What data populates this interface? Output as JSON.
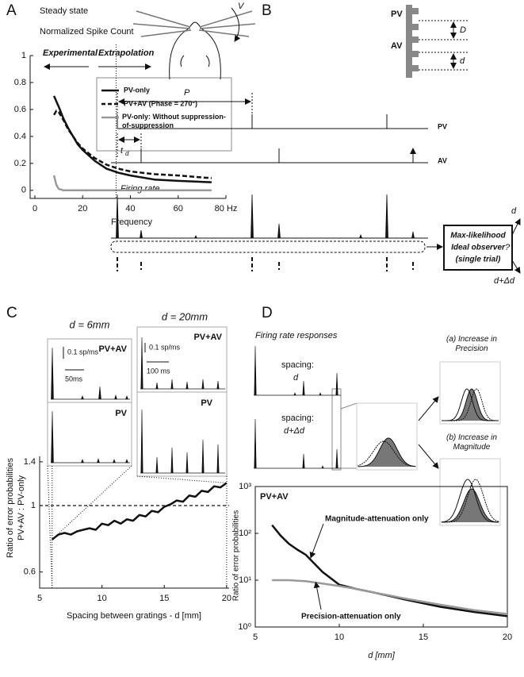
{
  "panels": [
    "A",
    "B",
    "C",
    "D"
  ],
  "chart_data": [
    {
      "type": "line",
      "title": "Steady state",
      "subtitle": "Normalized Spike Count",
      "xlabel": "Frequency",
      "xlim": [
        -2,
        80
      ],
      "xticks": [
        0,
        20,
        40,
        60,
        {
          "value": 80,
          "label": "80 Hz"
        }
      ],
      "ylim": [
        -0.06,
        1
      ],
      "yticks": [
        0,
        0.2,
        0.4,
        0.6,
        0.8,
        1
      ],
      "annotations": [
        "Experimental",
        "Extrapolation"
      ],
      "divider_x": 34,
      "legend": "upper right",
      "series": [
        {
          "name": "PV-only",
          "color": "#111111",
          "dash": "solid",
          "x": [
            8,
            9,
            10,
            12,
            14,
            16,
            18,
            20,
            25,
            30,
            35,
            40,
            50,
            60,
            74
          ],
          "values": [
            0.7,
            0.66,
            0.62,
            0.53,
            0.46,
            0.4,
            0.34,
            0.3,
            0.22,
            0.16,
            0.13,
            0.11,
            0.08,
            0.07,
            0.06
          ]
        },
        {
          "name": "PV+AV (Phase = 270°)",
          "color": "#111111",
          "dash": "dashed",
          "x": [
            8,
            9,
            10,
            11,
            12,
            14,
            16,
            18,
            20,
            25,
            30,
            35,
            40,
            50,
            60,
            74
          ],
          "values": [
            0.56,
            0.59,
            0.58,
            0.55,
            0.52,
            0.45,
            0.4,
            0.35,
            0.31,
            0.24,
            0.19,
            0.16,
            0.14,
            0.12,
            0.11,
            0.09
          ]
        },
        {
          "name": "PV-only: Without suppression-of-suppression",
          "color": "#999999",
          "dash": "solid",
          "x": [
            8,
            9,
            10,
            12,
            20,
            40,
            60,
            74
          ],
          "values": [
            0.11,
            0.04,
            0.01,
            0,
            0,
            0,
            0,
            0
          ]
        }
      ]
    },
    {
      "type": "line",
      "xlabel": "Spacing between gratings - d [mm]",
      "ylabel": [
        "Ratio of error probabilities",
        "PV+AV : PV-only"
      ],
      "xlim": [
        5,
        20.2
      ],
      "xticks": [
        5,
        10,
        15,
        20
      ],
      "ylim": [
        0.53,
        1.46
      ],
      "yscale": "log",
      "yticks": [
        0.6,
        1,
        1.4
      ],
      "reference_y": 1,
      "series": [
        {
          "color": "#111111",
          "dash": "solid",
          "x": [
            6,
            6.5,
            7,
            7.5,
            8,
            8.5,
            9,
            9.5,
            10,
            10.5,
            11,
            11.5,
            12,
            12.5,
            13,
            13.5,
            14,
            14.5,
            15,
            15.5,
            16,
            16.5,
            17,
            17.5,
            18,
            18.5,
            19,
            19.5,
            20
          ],
          "values": [
            0.77,
            0.8,
            0.81,
            0.8,
            0.82,
            0.83,
            0.84,
            0.83,
            0.87,
            0.86,
            0.89,
            0.87,
            0.9,
            0.89,
            0.93,
            0.92,
            0.96,
            0.95,
            0.99,
            1.01,
            1.04,
            1.03,
            1.08,
            1.07,
            1.12,
            1.11,
            1.16,
            1.15,
            1.19
          ]
        }
      ]
    },
    {
      "type": "line",
      "title": "PV+AV",
      "xlabel": "d [mm]",
      "ylabel": "Ratio of error probabilities",
      "xlim": [
        5,
        20
      ],
      "xticks": [
        5,
        10,
        15,
        20
      ],
      "ylim": [
        1,
        1000
      ],
      "yscale": "log",
      "yticks": [
        {
          "value": 1,
          "label": "10⁰"
        },
        {
          "value": 10,
          "label": "10¹"
        },
        {
          "value": 100,
          "label": "10²"
        },
        {
          "value": 1000,
          "label": "10³"
        }
      ],
      "legend": "inline",
      "series": [
        {
          "name": "Magnitude-attenuation only",
          "color": "#111111",
          "dash": "solid",
          "x": [
            6,
            6.5,
            7,
            7.5,
            8,
            9,
            10,
            11,
            12,
            13,
            14,
            16,
            18,
            20
          ],
          "values": [
            150,
            90,
            60,
            45,
            35,
            15,
            8,
            6.5,
            5.5,
            4.6,
            3.8,
            2.7,
            2.1,
            1.7
          ]
        },
        {
          "name": "Precision-attenuation only",
          "color": "#999999",
          "dash": "solid",
          "x": [
            6,
            7,
            8,
            9,
            10,
            11,
            12,
            13,
            14,
            16,
            18,
            20
          ],
          "values": [
            10,
            10,
            9.5,
            8.5,
            7.5,
            6.5,
            5.5,
            4.7,
            4,
            3,
            2.3,
            1.9
          ]
        }
      ]
    }
  ],
  "diagram_b": {
    "velocity": "V",
    "grating_labels": [
      "PV",
      "AV"
    ],
    "spacings": [
      "D",
      "d"
    ],
    "period": "P",
    "delay": "t",
    "delay_subscript": "d",
    "trains": [
      "PV",
      "AV"
    ],
    "firing_rate": "Firing rate",
    "observer": [
      "Max-likelihood",
      "Ideal observer",
      "(single trial)"
    ],
    "outcomes": [
      "d",
      "?",
      "d+Δd"
    ]
  },
  "inset_c": {
    "titles": [
      "d = 6mm",
      "d = 20mm"
    ],
    "labels": [
      "PV+AV",
      "PV",
      "PV+AV",
      "PV"
    ],
    "scale_bars": [
      "0.1 sp/ms",
      "50ms",
      "0.1 sp/ms",
      "100 ms"
    ]
  },
  "diagram_d": {
    "title": "Firing rate responses",
    "spacings": [
      "spacing:",
      "d",
      "spacing:",
      "d+Δd"
    ],
    "outcomes": [
      "(a) Increase in Precision",
      "(b) Increase in Magnitude"
    ]
  }
}
